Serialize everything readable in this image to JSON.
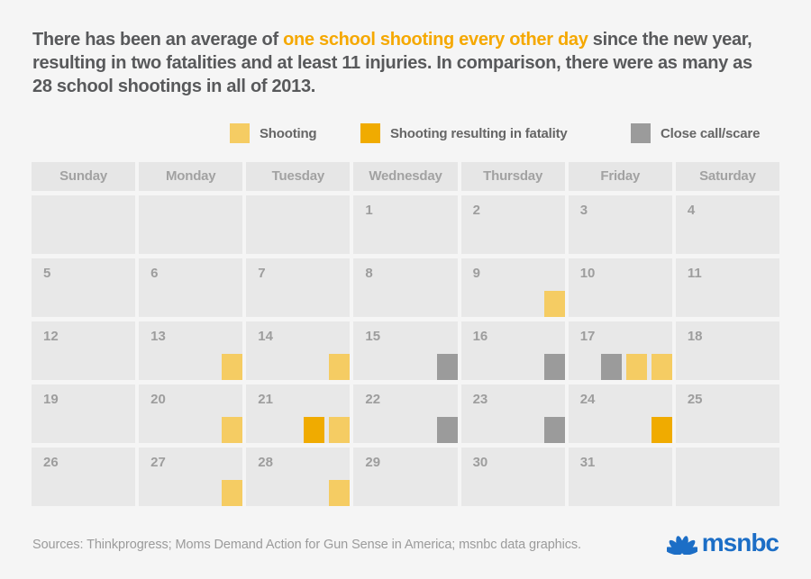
{
  "headline": {
    "pre": "There has been an average of ",
    "highlight": "one school shooting every other day",
    "post": " since the new year, resulting in two fatalities and at least 11 injuries. In comparison, there were as many as 28 school shootings in all of 2013."
  },
  "colors": {
    "highlight": "#f5a800",
    "shooting": "#f5cc63",
    "fatality": "#f0ab00",
    "close_call": "#9b9b9b",
    "brand_blue": "#1c6ec6",
    "cell_bg": "#e8e8e8",
    "page_bg": "#f5f5f5"
  },
  "legend": [
    {
      "type": "shooting",
      "label": "Shooting",
      "color": "#f5cc63"
    },
    {
      "type": "fatality",
      "label": "Shooting resulting in fatality",
      "color": "#f0ab00"
    },
    {
      "type": "close_call",
      "label": "Close call/scare",
      "color": "#9b9b9b"
    }
  ],
  "calendar": {
    "day_headers": [
      "Sunday",
      "Monday",
      "Tuesday",
      "Wednesday",
      "Thursday",
      "Friday",
      "Saturday"
    ],
    "weeks": [
      [
        {
          "day": "",
          "markers": []
        },
        {
          "day": "",
          "markers": []
        },
        {
          "day": "",
          "markers": []
        },
        {
          "day": "1",
          "markers": []
        },
        {
          "day": "2",
          "markers": []
        },
        {
          "day": "3",
          "markers": []
        },
        {
          "day": "4",
          "markers": []
        }
      ],
      [
        {
          "day": "5",
          "markers": []
        },
        {
          "day": "6",
          "markers": []
        },
        {
          "day": "7",
          "markers": []
        },
        {
          "day": "8",
          "markers": []
        },
        {
          "day": "9",
          "markers": [
            "shooting"
          ]
        },
        {
          "day": "10",
          "markers": []
        },
        {
          "day": "11",
          "markers": []
        }
      ],
      [
        {
          "day": "12",
          "markers": []
        },
        {
          "day": "13",
          "markers": [
            "shooting"
          ]
        },
        {
          "day": "14",
          "markers": [
            "shooting"
          ]
        },
        {
          "day": "15",
          "markers": [
            "close_call"
          ]
        },
        {
          "day": "16",
          "markers": [
            "close_call"
          ]
        },
        {
          "day": "17",
          "markers": [
            "close_call",
            "shooting",
            "shooting"
          ]
        },
        {
          "day": "18",
          "markers": []
        }
      ],
      [
        {
          "day": "19",
          "markers": []
        },
        {
          "day": "20",
          "markers": [
            "shooting"
          ]
        },
        {
          "day": "21",
          "markers": [
            "fatality",
            "shooting"
          ]
        },
        {
          "day": "22",
          "markers": [
            "close_call"
          ]
        },
        {
          "day": "23",
          "markers": [
            "close_call"
          ]
        },
        {
          "day": "24",
          "markers": [
            "fatality"
          ]
        },
        {
          "day": "25",
          "markers": []
        }
      ],
      [
        {
          "day": "26",
          "markers": []
        },
        {
          "day": "27",
          "markers": [
            "shooting"
          ]
        },
        {
          "day": "28",
          "markers": [
            "shooting"
          ]
        },
        {
          "day": "29",
          "markers": []
        },
        {
          "day": "30",
          "markers": []
        },
        {
          "day": "31",
          "markers": []
        },
        {
          "day": "",
          "markers": []
        }
      ]
    ]
  },
  "footer": {
    "sources": "Sources: Thinkprogress; Moms Demand Action for Gun Sense in America; msnbc data graphics.",
    "brand": "msnbc"
  },
  "chart_data": {
    "type": "heatmap",
    "title": "There has been an average of one school shooting every other day since the new year, resulting in two fatalities and at least 11 injuries. In comparison, there were as many as 28 school shootings in all of 2013.",
    "layout": "month-calendar",
    "day_headers": [
      "Sunday",
      "Monday",
      "Tuesday",
      "Wednesday",
      "Thursday",
      "Friday",
      "Saturday"
    ],
    "first_day_column": "Wednesday",
    "days_in_month": 31,
    "legend_entries": [
      "Shooting",
      "Shooting resulting in fatality",
      "Close call/scare"
    ],
    "events": [
      {
        "day": 9,
        "types": [
          "shooting"
        ]
      },
      {
        "day": 13,
        "types": [
          "shooting"
        ]
      },
      {
        "day": 14,
        "types": [
          "shooting"
        ]
      },
      {
        "day": 15,
        "types": [
          "close_call"
        ]
      },
      {
        "day": 16,
        "types": [
          "close_call"
        ]
      },
      {
        "day": 17,
        "types": [
          "close_call",
          "shooting",
          "shooting"
        ]
      },
      {
        "day": 20,
        "types": [
          "shooting"
        ]
      },
      {
        "day": 21,
        "types": [
          "fatality",
          "shooting"
        ]
      },
      {
        "day": 22,
        "types": [
          "close_call"
        ]
      },
      {
        "day": 23,
        "types": [
          "close_call"
        ]
      },
      {
        "day": 24,
        "types": [
          "fatality"
        ]
      },
      {
        "day": 27,
        "types": [
          "shooting"
        ]
      },
      {
        "day": 28,
        "types": [
          "shooting"
        ]
      }
    ]
  }
}
